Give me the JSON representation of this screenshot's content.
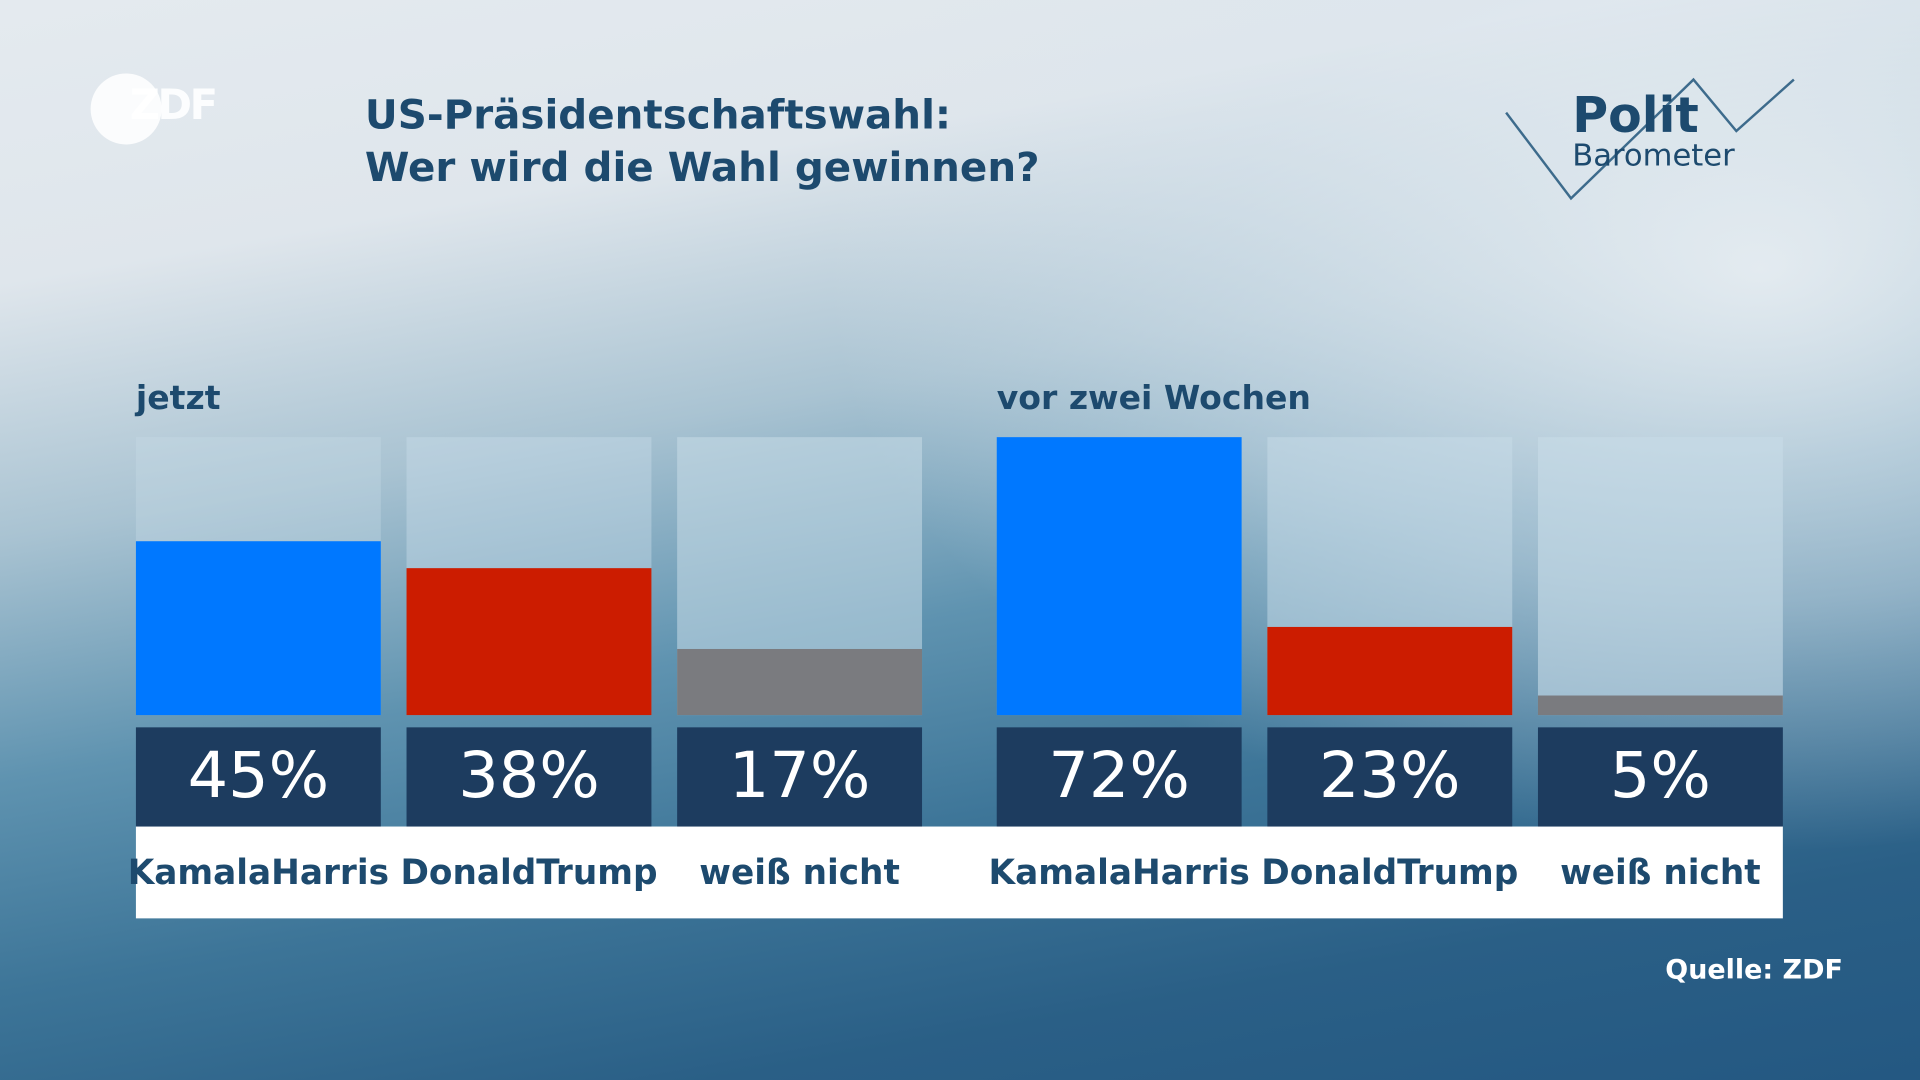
{
  "logo": "ZDF",
  "title_line1": "US-Präsidentschaftswahl:",
  "title_line2": "Wer wird die Wahl gewinnen?",
  "brand": {
    "line1": "Polit",
    "line2": "Barometer"
  },
  "source": "Quelle: ZDF",
  "chart_data": [
    {
      "type": "bar",
      "title": "jetzt",
      "categories": [
        "Kamala Harris",
        "Donald Trump",
        "weiß nicht"
      ],
      "values": [
        45,
        38,
        17
      ],
      "labels": [
        "45%",
        "38%",
        "17%"
      ],
      "colors": [
        "#0078ff",
        "#cc1c00",
        "#7a7b7f"
      ],
      "ylim": [
        0,
        72
      ]
    },
    {
      "type": "bar",
      "title": "vor zwei Wochen",
      "categories": [
        "Kamala Harris",
        "Donald Trump",
        "weiß nicht"
      ],
      "values": [
        72,
        23,
        5
      ],
      "labels": [
        "72%",
        "23%",
        "5%"
      ],
      "colors": [
        "#0078ff",
        "#cc1c00",
        "#7a7b7f"
      ],
      "ylim": [
        0,
        72
      ]
    }
  ],
  "name_lines": [
    [
      "Kamala",
      "Harris"
    ],
    [
      "Donald",
      "Trump"
    ],
    [
      "weiß nicht"
    ]
  ]
}
